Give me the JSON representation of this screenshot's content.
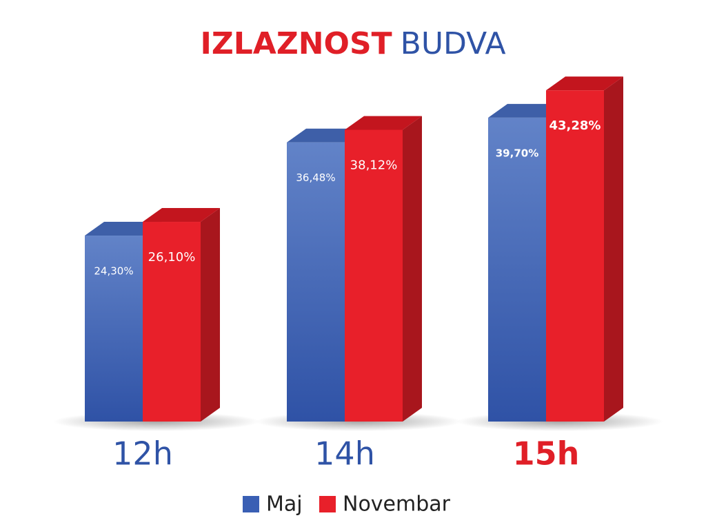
{
  "chart_data": {
    "type": "bar3d",
    "title": [
      "IZLAZNOST",
      "BUDVA"
    ],
    "categories": [
      "12h",
      "14h",
      "15h"
    ],
    "series": [
      {
        "name": "Maj",
        "color": "#3a5fb4",
        "values": [
          24.3,
          36.48,
          39.7
        ],
        "value_labels": [
          "24,30%",
          "36,48%",
          "39,70%"
        ]
      },
      {
        "name": "Novembar",
        "color": "#e8202a",
        "values": [
          26.1,
          38.12,
          43.28
        ],
        "value_labels": [
          "26,10%",
          "38,12%",
          "43,28%"
        ]
      }
    ]
  }
}
